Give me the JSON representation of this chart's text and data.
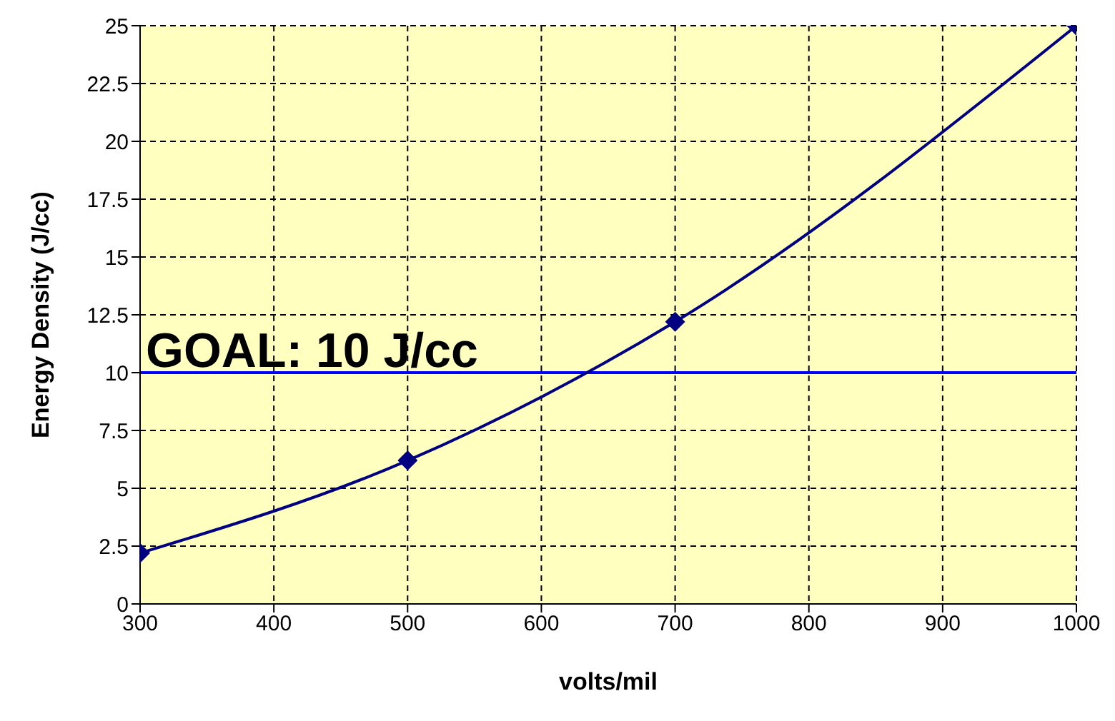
{
  "chart_data": {
    "type": "line",
    "xlabel": "volts/mil",
    "ylabel": "Energy Density (J/cc)",
    "x": [
      300,
      500,
      700,
      1000
    ],
    "series": [
      {
        "color": "#000080",
        "values": [
          2.2,
          6.2,
          12.2,
          25
        ]
      }
    ],
    "xlim": [
      300,
      1000
    ],
    "xticks": [
      300,
      400,
      500,
      600,
      700,
      800,
      900,
      1000
    ],
    "ylim": [
      0,
      25
    ],
    "yticks": [
      0,
      2.5,
      5,
      7.5,
      10,
      12.5,
      15,
      17.5,
      20,
      22.5,
      25
    ],
    "grid": true,
    "marker": "diamond",
    "line_style": "solid",
    "ref_lines": [
      {
        "axis": "y",
        "value": 10,
        "label": "GOAL: 10 J/cc",
        "color": "#0000ff"
      }
    ]
  }
}
